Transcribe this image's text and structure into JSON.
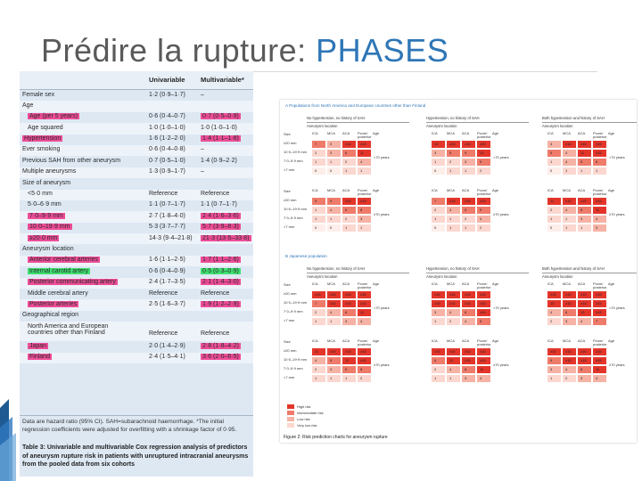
{
  "slide": {
    "title_main": "Prédire la rupture: ",
    "title_highlight": "PHASES"
  },
  "table3": {
    "col_uni": "Univariable",
    "col_multi": "Multivariable*",
    "rows": [
      {
        "label": "Female sex",
        "uni": "1·2 (0·9–1·7)",
        "multi": "–",
        "indent": false,
        "hl": ""
      },
      {
        "label": "Age",
        "uni": "",
        "multi": "",
        "indent": false,
        "hl": ""
      },
      {
        "label": "Age (per 5 years)",
        "uni": "0·6 (0·4–0·7)",
        "multi": "0·7 (0·5–0·9)",
        "indent": true,
        "hl": "pink"
      },
      {
        "label": "Age squared",
        "uni": "1·0 (1·0–1·0)",
        "multi": "1·0 (1·0–1·0)",
        "indent": true,
        "hl": ""
      },
      {
        "label": "Hypertension",
        "uni": "1·6 (1·2–2·0)",
        "multi": "1·4 (1·1–1·8)",
        "indent": false,
        "hl": "pink"
      },
      {
        "label": "Ever smoking",
        "uni": "0·6 (0·4–0·8)",
        "multi": "–",
        "indent": false,
        "hl": ""
      },
      {
        "label": "Previous SAH from other aneurysm",
        "uni": "0·7 (0·5–1·0)",
        "multi": "1·4 (0·9–2·2)",
        "indent": false,
        "hl": ""
      },
      {
        "label": "Multiple aneurysms",
        "uni": "1·3 (0·9–1·7)",
        "multi": "–",
        "indent": false,
        "hl": ""
      },
      {
        "label": "Size of aneurysm",
        "uni": "",
        "multi": "",
        "indent": false,
        "hl": ""
      },
      {
        "label": "<5·0 mm",
        "uni": "Reference",
        "multi": "Reference",
        "indent": true,
        "hl": ""
      },
      {
        "label": "5·0–6·9 mm",
        "uni": "1·1 (0·7–1·7)",
        "multi": "1·1 (0·7–1·7)",
        "indent": true,
        "hl": ""
      },
      {
        "label": "7·0–9·9 mm",
        "uni": "2·7 (1·8–4·0)",
        "multi": "2·4 (1·6–3·6)",
        "indent": true,
        "hl": "pink"
      },
      {
        "label": "10·0–19·9 mm",
        "uni": "5·3 (3·7–7·7)",
        "multi": "5·7 (3·9–8·3)",
        "indent": true,
        "hl": "pink"
      },
      {
        "label": "≥20·0 mm",
        "uni": "14·3 (9·4–21·8)",
        "multi": "21·3 (13·5–33·8)",
        "indent": true,
        "hl": "pink"
      },
      {
        "label": "Aneurysm location",
        "uni": "",
        "multi": "",
        "indent": false,
        "hl": ""
      },
      {
        "label": "Anterior cerebral arteries",
        "uni": "1·6 (1·1–2·5)",
        "multi": "1·7 (1·1–2·6)",
        "indent": true,
        "hl": "pink"
      },
      {
        "label": "Internal carotid artery",
        "uni": "0·6 (0·4–0·9)",
        "multi": "0·5 (0·3–0·9)",
        "indent": true,
        "hl": "green"
      },
      {
        "label": "Posterior communicating artery",
        "uni": "2·4 (1·7–3·5)",
        "multi": "2·1 (1·4–3·0)",
        "indent": true,
        "hl": "pink"
      },
      {
        "label": "Middle cerebral artery",
        "uni": "Reference",
        "multi": "Reference",
        "indent": true,
        "hl": ""
      },
      {
        "label": "Posterior arteries",
        "uni": "2·5 (1·6–3·7)",
        "multi": "1·9 (1·2–2·9)",
        "indent": true,
        "hl": "pink"
      },
      {
        "label": "Geographical region",
        "uni": "",
        "multi": "",
        "indent": false,
        "hl": ""
      },
      {
        "label": "North America and European",
        "label2": "countries other than Finland",
        "uni": "Reference",
        "multi": "Reference",
        "indent": true,
        "hl": ""
      },
      {
        "label": "Japan",
        "uni": "2·0 (1·4–2·9)",
        "multi": "2·8 (1·8–4·2)",
        "indent": true,
        "hl": "pink"
      },
      {
        "label": "Finland",
        "uni": "2·4 (1·5–4·1)",
        "multi": "3·6 (2·0–6·5)",
        "indent": true,
        "hl": "pink"
      }
    ],
    "note": "Data are hazard ratio (95% CI). SAH=subarachnoid haemorrhage. *The initial regression coefficients were adjusted for overfitting with a shrinkage factor of 0·95.",
    "caption": "Table 3: Univariable and multivariable Cox regression analysis of predictors of aneurysm rupture risk in patients with unruptured intracranial aneurysms from the pooled data from six cohorts"
  },
  "figure2": {
    "panel_a_title": "A  Populations from North America and European countries other than Finland",
    "panel_b_title": "B  Japanese population",
    "groups": [
      "No hypertension, no history of SAH",
      "Hypertension, no history of SAH",
      "Both hypertension and history of SAH"
    ],
    "subgroup": "Aneurysm location",
    "subgroup3": "Aneurysm location",
    "col_heads": [
      "ICA",
      "MCA",
      "ACA",
      "Pcom/ posterior",
      "Age"
    ],
    "size_labels": [
      "Size",
      "≥20 mm",
      "10·0–19·9 mm",
      "7·0–9·9 mm",
      "<7 mm"
    ],
    "age_top": "<70 years",
    "age_bottom": "≥70 years",
    "grid_values": {
      "a_top_g1": [
        [
          "7",
          "3",
          "≥15",
          "≥15"
        ],
        [
          "2",
          "3",
          "6",
          "11"
        ],
        [
          "1",
          "1",
          "2",
          "4"
        ],
        [
          "0",
          "0",
          "1",
          "1"
        ]
      ],
      "a_top_g2": [
        [
          "10",
          "≥15",
          "≥15",
          "≥15"
        ],
        [
          "3",
          "5",
          "9",
          "13"
        ],
        [
          "1",
          "2",
          "3",
          "5"
        ],
        [
          "0",
          "1",
          "1",
          "2"
        ]
      ],
      "a_top_g3": [
        [
          "4",
          "≥15",
          "≥15",
          "≥15"
        ],
        [
          "5",
          "4",
          "11",
          "≥15"
        ],
        [
          "1",
          "4",
          "5",
          "8"
        ],
        [
          "0",
          "1",
          "1",
          "1"
        ]
      ],
      "a_bot_g1": [
        [
          "5",
          "9",
          "≥15",
          "≥15"
        ],
        [
          "1",
          "4",
          "5",
          "8"
        ],
        [
          "1",
          "1",
          "2",
          "3"
        ],
        [
          "0",
          "0",
          "1",
          "1"
        ]
      ],
      "a_bot_g2": [
        [
          "7",
          "≥15",
          "≥15",
          "≥15"
        ],
        [
          "2",
          "3",
          "5",
          "9"
        ],
        [
          "1",
          "1",
          "2",
          "4"
        ],
        [
          "0",
          "1",
          "1",
          "2"
        ]
      ],
      "a_bot_g3": [
        [
          "11",
          "≥15",
          "≥15",
          "≥15"
        ],
        [
          "2",
          "4",
          "8",
          "11"
        ],
        [
          "1",
          "1",
          "3",
          "4"
        ],
        [
          "0",
          "1",
          "1",
          "3"
        ]
      ],
      "b_top_g1": [
        [
          "≥15",
          "≥15",
          "≥15",
          "≥15"
        ],
        [
          "7",
          "≥15",
          "≥15",
          "≥15"
        ],
        [
          "2",
          "4",
          "8",
          "11"
        ],
        [
          "1",
          "1",
          "3",
          "4"
        ]
      ],
      "b_top_g2": [
        [
          "≥15",
          "≥15",
          "≥15",
          "≥15"
        ],
        [
          "≥15",
          "≥15",
          "≥15",
          "≥15"
        ],
        [
          "3",
          "4",
          "8",
          "≥15"
        ],
        [
          "1",
          "2",
          "4",
          "5"
        ]
      ],
      "b_top_g3": [
        [
          "≥15",
          "≥15",
          "≥15",
          "≥15"
        ],
        [
          "10",
          "≥15",
          "≥15",
          "≥15"
        ],
        [
          "4",
          "6",
          "13",
          "≥15"
        ],
        [
          "2",
          "3",
          "4",
          "7"
        ]
      ],
      "b_bot_g1": [
        [
          "11",
          "≥15",
          "≥15",
          "≥15"
        ],
        [
          "4",
          "5",
          "11",
          "≥15"
        ],
        [
          "2",
          "3",
          "5",
          "8"
        ],
        [
          "1",
          "1",
          "1",
          "2"
        ]
      ],
      "b_bot_g2": [
        [
          "≥15",
          "≥15",
          "≥15",
          "≥15"
        ],
        [
          "6",
          "11",
          "≥15",
          "≥15"
        ],
        [
          "2",
          "4",
          "8",
          "11"
        ],
        [
          "1",
          "1",
          "3",
          "4"
        ]
      ],
      "b_bot_g3": [
        [
          "≥15",
          "≥15",
          "≥15",
          "≥15"
        ],
        [
          "9",
          "≥15",
          "≥15",
          "≥15"
        ],
        [
          "3",
          "4",
          "8",
          "11"
        ],
        [
          "1",
          "2",
          "3",
          "4"
        ]
      ]
    },
    "legend": [
      "High risk",
      "Intermediate risk",
      "Low risk",
      "Very low risk"
    ],
    "caption": "Figure 2: Risk prediction charts for aneurysm rupture"
  },
  "colors": {
    "title_gray": "#5a5a5a",
    "title_blue": "#2e76b6",
    "highlight_pink": "#ee4d98",
    "highlight_green": "#3ee070"
  }
}
